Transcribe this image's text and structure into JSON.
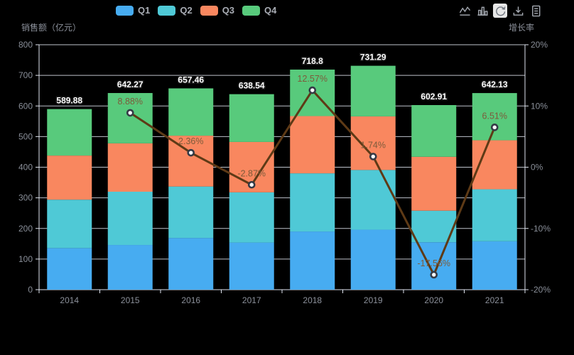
{
  "page": {
    "background": "#000000"
  },
  "legend": {
    "position": "top",
    "items": [
      {
        "label": "Q1",
        "color": "#47ACF1"
      },
      {
        "label": "Q2",
        "color": "#4FC9D6"
      },
      {
        "label": "Q3",
        "color": "#F9875F"
      },
      {
        "label": "Q4",
        "color": "#58CA7C"
      }
    ]
  },
  "toolbar": {
    "icons": [
      {
        "name": "magic-type-line-icon",
        "active": false
      },
      {
        "name": "magic-type-bar-icon",
        "active": false
      },
      {
        "name": "restore-icon",
        "active": true
      },
      {
        "name": "save-image-icon",
        "active": false
      },
      {
        "name": "data-view-icon",
        "active": false
      }
    ]
  },
  "chart_data": {
    "type": "bar",
    "subtype": "stacked-bar-with-line",
    "categories": [
      "2014",
      "2015",
      "2016",
      "2017",
      "2018",
      "2019",
      "2020",
      "2021"
    ],
    "series": [
      {
        "name": "Q1",
        "type": "bar",
        "stack": "total",
        "color": "#47ACF1",
        "values": [
          136,
          146,
          169,
          154,
          190,
          196,
          155,
          158
        ]
      },
      {
        "name": "Q2",
        "type": "bar",
        "stack": "total",
        "color": "#4FC9D6",
        "values": [
          158,
          174,
          168,
          164,
          190,
          195,
          103,
          170
        ]
      },
      {
        "name": "Q3",
        "type": "bar",
        "stack": "total",
        "color": "#F9875F",
        "values": [
          144,
          158,
          166,
          164.5,
          187,
          175,
          176,
          160
        ]
      },
      {
        "name": "Q4",
        "type": "bar",
        "stack": "total",
        "color": "#58CA7C",
        "values": [
          151.88,
          164.27,
          154.46,
          156.04,
          151.8,
          165.29,
          168.91,
          154.13
        ]
      },
      {
        "name": "增长率",
        "type": "line",
        "axis": "right",
        "color": "#5E3A16",
        "marker_border": "#343A46",
        "marker_fill": "#FFFFFF",
        "label_color": "#7D5B3B",
        "values": [
          null,
          8.88,
          2.36,
          -2.87,
          12.57,
          1.74,
          -17.56,
          6.51
        ],
        "point_labels": [
          "",
          "8.88%",
          "2.36%",
          "-2.87%",
          "12.57%",
          "1.74%",
          "-17.56%",
          "6.51%"
        ]
      }
    ],
    "totals": [
      589.88,
      642.27,
      657.46,
      638.54,
      718.8,
      731.29,
      602.91,
      642.13
    ],
    "total_labels": [
      "589.88",
      "642.27",
      "657.46",
      "638.54",
      "718.8",
      "731.29",
      "602.91",
      "642.13"
    ],
    "total_label_color": "#FFFFFF",
    "left_axis": {
      "name": "销售额（亿元）",
      "min": 0,
      "max": 800,
      "interval": 100,
      "tick_labels": [
        "0",
        "100",
        "200",
        "300",
        "400",
        "500",
        "600",
        "700",
        "800"
      ],
      "label_color": "#898E98"
    },
    "right_axis": {
      "name": "增长率",
      "min": -20,
      "max": 20,
      "interval": 10,
      "tick_labels": [
        "-20%",
        "-10%",
        "0%",
        "10%",
        "20%"
      ],
      "label_color": "#898E98"
    },
    "x_axis": {
      "label_color": "#8C919B"
    },
    "grid": {
      "show": true,
      "color": "#E0E5EF"
    },
    "legend_position": "top"
  }
}
